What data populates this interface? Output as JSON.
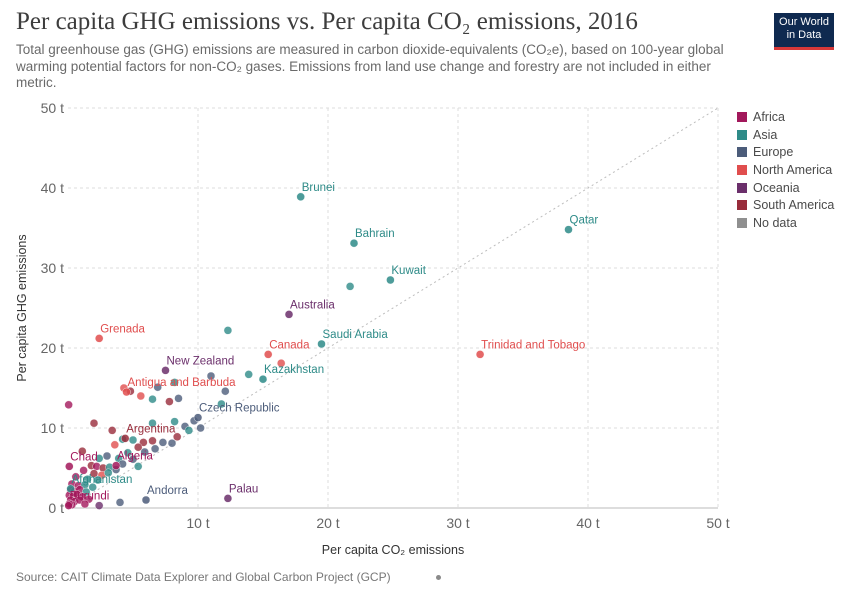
{
  "header": {
    "title": "Per capita GHG emissions vs. Per capita CO₂ emissions, 2016",
    "subtitle": "Total greenhouse gas (GHG) emissions are measured in carbon dioxide-equivalents (CO₂e), based on 100-year global warming potential factors for non-CO₂ gases. Emissions from land use change and forestry are not included in either metric.",
    "logo_line1": "Our World",
    "logo_line2": "in Data"
  },
  "footer": {
    "source": "Source: CAIT Climate Data Explorer and Global Carbon Project (GCP)"
  },
  "chart_data": {
    "type": "scatter",
    "xlabel": "Per capita CO₂ emissions",
    "ylabel": "Per capita GHG emissions",
    "xlim": [
      0,
      50
    ],
    "ylim": [
      0,
      50
    ],
    "x_ticks": [
      {
        "value": 10,
        "label": "10 t"
      },
      {
        "value": 20,
        "label": "20 t"
      },
      {
        "value": 30,
        "label": "30 t"
      },
      {
        "value": 40,
        "label": "40 t"
      },
      {
        "value": 50,
        "label": "50 t"
      }
    ],
    "y_ticks": [
      {
        "value": 0,
        "label": "0 t"
      },
      {
        "value": 10,
        "label": "10 t"
      },
      {
        "value": 20,
        "label": "20 t"
      },
      {
        "value": 30,
        "label": "30 t"
      },
      {
        "value": 40,
        "label": "40 t"
      },
      {
        "value": 50,
        "label": "50 t"
      }
    ],
    "grid": true,
    "reference_line": "y = x",
    "legend_position": "right",
    "legend": [
      {
        "name": "Africa",
        "color": "#a2185b"
      },
      {
        "name": "Asia",
        "color": "#2e8b88"
      },
      {
        "name": "Europe",
        "color": "#4c5c7a"
      },
      {
        "name": "North America",
        "color": "#e04e4e"
      },
      {
        "name": "Oceania",
        "color": "#6b2f6b"
      },
      {
        "name": "South America",
        "color": "#982c3b"
      },
      {
        "name": "No data",
        "color": "#8f8f8f"
      }
    ],
    "labeled_points": [
      {
        "name": "Brunei",
        "x": 17.9,
        "y": 38.9,
        "region": "Asia"
      },
      {
        "name": "Qatar",
        "x": 38.5,
        "y": 34.8,
        "region": "Asia"
      },
      {
        "name": "Bahrain",
        "x": 22.0,
        "y": 33.1,
        "region": "Asia"
      },
      {
        "name": "Kuwait",
        "x": 24.8,
        "y": 28.5,
        "region": "Asia"
      },
      {
        "name": "Australia",
        "x": 17.0,
        "y": 24.2,
        "region": "Oceania"
      },
      {
        "name": "Grenada",
        "x": 2.4,
        "y": 21.2,
        "region": "North America"
      },
      {
        "name": "Saudi Arabia",
        "x": 19.5,
        "y": 20.5,
        "region": "Asia"
      },
      {
        "name": "Canada",
        "x": 15.4,
        "y": 19.2,
        "region": "North America"
      },
      {
        "name": "Trinidad and Tobago",
        "x": 31.7,
        "y": 19.2,
        "region": "North America"
      },
      {
        "name": "New Zealand",
        "x": 7.5,
        "y": 17.2,
        "region": "Oceania"
      },
      {
        "name": "Kazakhstan",
        "x": 15.0,
        "y": 16.1,
        "region": "Asia"
      },
      {
        "name": "Antigua and Barbuda",
        "x": 4.5,
        "y": 14.5,
        "region": "North America"
      },
      {
        "name": "Czech Republic",
        "x": 10.0,
        "y": 11.3,
        "region": "Europe"
      },
      {
        "name": "Argentina",
        "x": 4.4,
        "y": 8.7,
        "region": "South America"
      },
      {
        "name": "Chad",
        "x": 0.1,
        "y": 5.2,
        "region": "Africa"
      },
      {
        "name": "Algeria",
        "x": 3.7,
        "y": 5.3,
        "region": "Africa"
      },
      {
        "name": "Afghanistan",
        "x": 0.2,
        "y": 2.4,
        "region": "Asia"
      },
      {
        "name": "Andorra",
        "x": 6.0,
        "y": 1.0,
        "region": "Europe"
      },
      {
        "name": "Palau",
        "x": 12.3,
        "y": 1.2,
        "region": "Oceania"
      },
      {
        "name": "Burundi",
        "x": 0.05,
        "y": 0.3,
        "region": "Africa"
      }
    ],
    "other_points": [
      {
        "x": 21.7,
        "y": 27.7,
        "region": "Asia"
      },
      {
        "x": 12.3,
        "y": 22.2,
        "region": "Asia"
      },
      {
        "x": 16.4,
        "y": 18.1,
        "region": "North America"
      },
      {
        "x": 13.9,
        "y": 16.7,
        "region": "Asia"
      },
      {
        "x": 11.0,
        "y": 16.5,
        "region": "Europe"
      },
      {
        "x": 8.2,
        "y": 15.7,
        "region": "Asia"
      },
      {
        "x": 12.1,
        "y": 14.6,
        "region": "Europe"
      },
      {
        "x": 6.9,
        "y": 15.1,
        "region": "Europe"
      },
      {
        "x": 8.5,
        "y": 13.7,
        "region": "Europe"
      },
      {
        "x": 4.3,
        "y": 15.0,
        "region": "North America"
      },
      {
        "x": 4.8,
        "y": 14.6,
        "region": "South America"
      },
      {
        "x": 5.6,
        "y": 14.0,
        "region": "North America"
      },
      {
        "x": 6.5,
        "y": 13.6,
        "region": "Asia"
      },
      {
        "x": 7.8,
        "y": 13.3,
        "region": "South America"
      },
      {
        "x": 0.05,
        "y": 12.9,
        "region": "Africa"
      },
      {
        "x": 11.8,
        "y": 13.0,
        "region": "Asia"
      },
      {
        "x": 2.0,
        "y": 10.6,
        "region": "South America"
      },
      {
        "x": 6.5,
        "y": 10.6,
        "region": "Asia"
      },
      {
        "x": 8.2,
        "y": 10.8,
        "region": "Asia"
      },
      {
        "x": 9.0,
        "y": 10.2,
        "region": "Europe"
      },
      {
        "x": 9.7,
        "y": 10.9,
        "region": "Europe"
      },
      {
        "x": 10.2,
        "y": 10.0,
        "region": "Europe"
      },
      {
        "x": 9.3,
        "y": 9.7,
        "region": "Asia"
      },
      {
        "x": 3.4,
        "y": 9.7,
        "region": "South America"
      },
      {
        "x": 4.2,
        "y": 8.6,
        "region": "Asia"
      },
      {
        "x": 5.0,
        "y": 8.5,
        "region": "Asia"
      },
      {
        "x": 5.8,
        "y": 8.2,
        "region": "South America"
      },
      {
        "x": 6.5,
        "y": 8.4,
        "region": "South America"
      },
      {
        "x": 7.3,
        "y": 8.2,
        "region": "Europe"
      },
      {
        "x": 8.0,
        "y": 8.1,
        "region": "Europe"
      },
      {
        "x": 8.4,
        "y": 8.9,
        "region": "South America"
      },
      {
        "x": 3.6,
        "y": 7.9,
        "region": "North America"
      },
      {
        "x": 5.4,
        "y": 7.6,
        "region": "South America"
      },
      {
        "x": 6.7,
        "y": 7.4,
        "region": "Europe"
      },
      {
        "x": 1.1,
        "y": 7.1,
        "region": "South America"
      },
      {
        "x": 4.6,
        "y": 6.9,
        "region": "Asia"
      },
      {
        "x": 5.9,
        "y": 7.0,
        "region": "Europe"
      },
      {
        "x": 2.4,
        "y": 6.2,
        "region": "Asia"
      },
      {
        "x": 3.0,
        "y": 6.5,
        "region": "Europe"
      },
      {
        "x": 3.9,
        "y": 6.2,
        "region": "Asia"
      },
      {
        "x": 5.0,
        "y": 6.1,
        "region": "Europe"
      },
      {
        "x": 1.8,
        "y": 5.3,
        "region": "South America"
      },
      {
        "x": 2.2,
        "y": 5.2,
        "region": "Africa"
      },
      {
        "x": 2.7,
        "y": 5.0,
        "region": "South America"
      },
      {
        "x": 3.2,
        "y": 5.1,
        "region": "Asia"
      },
      {
        "x": 4.2,
        "y": 5.5,
        "region": "Europe"
      },
      {
        "x": 5.4,
        "y": 5.2,
        "region": "Asia"
      },
      {
        "x": 1.2,
        "y": 4.7,
        "region": "Africa"
      },
      {
        "x": 2.0,
        "y": 4.3,
        "region": "South America"
      },
      {
        "x": 2.6,
        "y": 4.1,
        "region": "North America"
      },
      {
        "x": 3.1,
        "y": 4.4,
        "region": "Asia"
      },
      {
        "x": 3.7,
        "y": 4.8,
        "region": "Europe"
      },
      {
        "x": 0.6,
        "y": 3.9,
        "region": "Africa"
      },
      {
        "x": 1.5,
        "y": 3.6,
        "region": "Asia"
      },
      {
        "x": 2.3,
        "y": 3.5,
        "region": "Asia"
      },
      {
        "x": 0.3,
        "y": 3.0,
        "region": "Africa"
      },
      {
        "x": 0.8,
        "y": 2.8,
        "region": "Africa"
      },
      {
        "x": 1.3,
        "y": 2.9,
        "region": "Asia"
      },
      {
        "x": 1.9,
        "y": 2.6,
        "region": "Asia"
      },
      {
        "x": 0.2,
        "y": 2.2,
        "region": "Africa"
      },
      {
        "x": 0.5,
        "y": 2.1,
        "region": "Africa"
      },
      {
        "x": 0.9,
        "y": 2.3,
        "region": "Africa"
      },
      {
        "x": 1.4,
        "y": 2.0,
        "region": "Asia"
      },
      {
        "x": 0.1,
        "y": 1.6,
        "region": "Africa"
      },
      {
        "x": 0.4,
        "y": 1.5,
        "region": "Africa"
      },
      {
        "x": 0.7,
        "y": 1.7,
        "region": "Africa"
      },
      {
        "x": 1.1,
        "y": 1.4,
        "region": "Africa"
      },
      {
        "x": 0.2,
        "y": 1.0,
        "region": "Africa"
      },
      {
        "x": 0.5,
        "y": 0.8,
        "region": "Africa"
      },
      {
        "x": 0.9,
        "y": 1.0,
        "region": "Africa"
      },
      {
        "x": 1.6,
        "y": 1.1,
        "region": "Africa"
      },
      {
        "x": 0.3,
        "y": 0.4,
        "region": "Africa"
      },
      {
        "x": 1.3,
        "y": 0.5,
        "region": "Africa"
      },
      {
        "x": 2.4,
        "y": 0.3,
        "region": "Oceania"
      },
      {
        "x": 4.0,
        "y": 0.7,
        "region": "Europe"
      },
      {
        "x": 0.1,
        "y": 0.5,
        "region": "Africa"
      }
    ]
  }
}
